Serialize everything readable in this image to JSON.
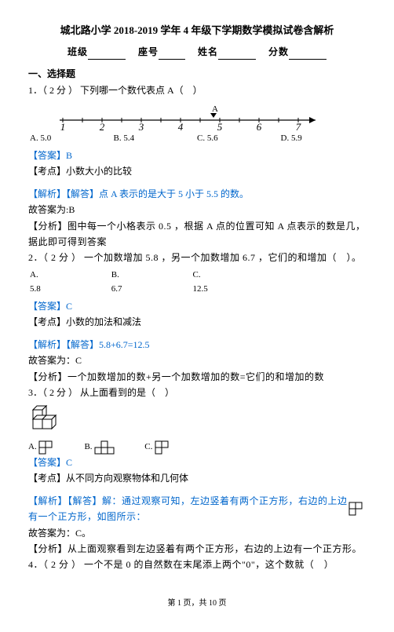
{
  "title": "城北路小学 2018-2019 学年 4 年级下学期数学模拟试卷含解析",
  "form": {
    "class_label": "班级",
    "seat_label": "座号",
    "name_label": "姓名",
    "score_label": "分数"
  },
  "section1": "一、选择题",
  "q1": {
    "stem": "1．（ 2 分 ） 下列哪一个数代表点 A（　）",
    "labelA": "A",
    "ticks": [
      "1",
      "2",
      "3",
      "4",
      "5",
      "6",
      "7"
    ],
    "opts": {
      "a": "A. 5.0",
      "b": "B. 5.4",
      "c": "C. 5.6",
      "d": "D. 5.9"
    },
    "ans": "【答案】B",
    "kd": "【考点】小数大小的比较",
    "jx": "【解析】【解答】点 A 表示的是大于 5 小于 5.5 的数。",
    "gda": "故答案为:B",
    "fx": "【分析】图中每一个小格表示 0.5 ，根据 A 点的位置可知 A 点表示的数是几，据此即可得到答案"
  },
  "q2": {
    "stem": "2．（ 2 分 ） 一个加数增加 5.8 ，另一个加数增加 6.7 ，它们的和增加（　）。",
    "opts": {
      "a": "A. 5.8",
      "b": "B. 6.7",
      "c": "C. 12.5"
    },
    "ans": "【答案】C",
    "kd": "【考点】小数的加法和减法",
    "jx": "【解析】【解答】5.8+6.7=12.5",
    "gda": "故答案为：C",
    "fx": "【分析】一个加数增加的数+另一个加数增加的数=它们的和增加的数"
  },
  "q3": {
    "stem": "3．（ 2 分 ） 从上面看到的是（　）",
    "opts": {
      "a": "A.",
      "b": "B.",
      "c": "C."
    },
    "ans": "【答案】C",
    "kd": "【考点】从不同方向观察物体和几何体",
    "jx": "【解析】【解答】解：通过观察可知，左边竖着有两个正方形，右边的上边有一个正方形，如图所示：",
    "gda": "故答案为：C。",
    "fx": "【分析】从上面观察看到左边竖着有两个正方形，右边的上边有一个正方形。"
  },
  "q4": {
    "stem": "4．（ 2 分 ） 一个不是 0 的自然数在末尾添上两个\"0\"，这个数就（　）"
  },
  "footer": "第 1 页，共 10 页",
  "colors": {
    "blue": "#0066cc",
    "red": "#cc0000",
    "black": "#000000"
  },
  "styles": {
    "numberline_x_start": 0,
    "numberline_x_end": 310,
    "tick_fontsize": 13,
    "cube_fill": "#ffffff",
    "cube_stroke": "#000000"
  }
}
